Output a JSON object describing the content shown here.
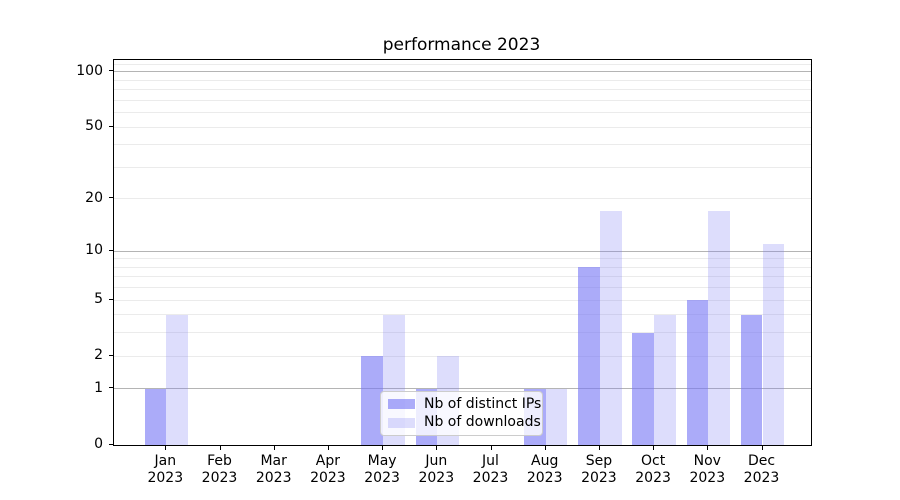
{
  "chart_data": {
    "type": "bar",
    "title": "performance 2023",
    "categories": [
      "Jan\n2023",
      "Feb\n2023",
      "Mar\n2023",
      "Apr\n2023",
      "May\n2023",
      "Jun\n2023",
      "Jul\n2023",
      "Aug\n2023",
      "Sep\n2023",
      "Oct\n2023",
      "Nov\n2023",
      "Dec\n2023"
    ],
    "series": [
      {
        "name": "Nb of distinct IPs",
        "color": "rgba(120,120,245,0.62)",
        "values": [
          1,
          0,
          0,
          0,
          2,
          1,
          0,
          1,
          8,
          3,
          5,
          4
        ]
      },
      {
        "name": "Nb of downloads",
        "color": "rgba(120,120,245,0.25)",
        "values": [
          4,
          0,
          0,
          0,
          4,
          2,
          0,
          1,
          17,
          4,
          17,
          11
        ]
      }
    ],
    "xlabel": "",
    "ylabel": "",
    "yscale": "log1p",
    "ylim": [
      0,
      116
    ],
    "yticks": [
      0,
      1,
      2,
      5,
      10,
      20,
      50,
      100
    ],
    "grid": {
      "major": [
        1,
        10,
        100
      ],
      "minor": [
        2,
        3,
        4,
        5,
        6,
        7,
        8,
        9,
        20,
        30,
        40,
        50,
        60,
        70,
        80,
        90,
        110
      ],
      "major_color": "#b4b4b4",
      "minor_color": "#ebebeb"
    },
    "legend": {
      "position": "lower center"
    }
  }
}
